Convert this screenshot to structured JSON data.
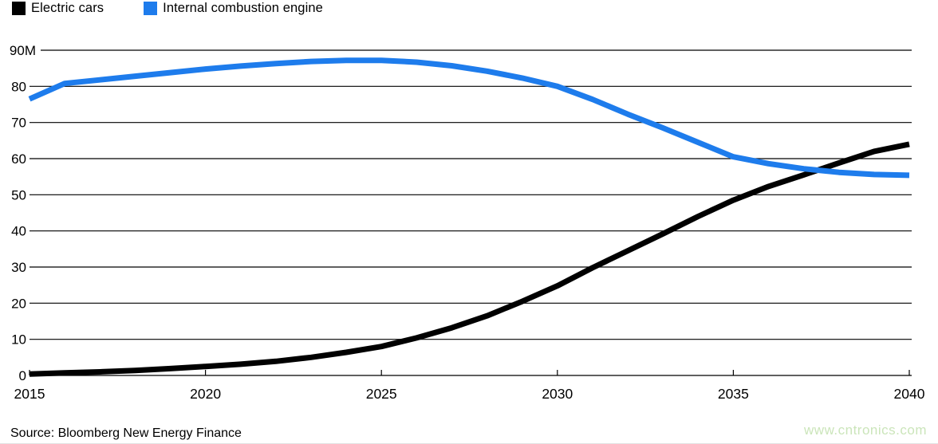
{
  "legend": {
    "items": [
      {
        "label": "Electric cars",
        "color": "#000000"
      },
      {
        "label": "Internal combustion engine",
        "color": "#1e7cec"
      }
    ]
  },
  "source_text": "Source: Bloomberg New Energy Finance",
  "watermark": {
    "text": "www.cntronics.com",
    "color": "#cbe5ba"
  },
  "colors": {
    "background": "#ffffff",
    "grid": "#000000",
    "axis": "#000000",
    "tick_text": "#000000",
    "electric_line": "#000000",
    "ice_line": "#1e7cec"
  },
  "chart_data": {
    "type": "line",
    "title": "",
    "xlabel": "",
    "ylabel": "",
    "unit": "M",
    "grid": "horizontal",
    "legend_position": "top-left",
    "xlim": [
      2015,
      2040
    ],
    "ylim": [
      0,
      90
    ],
    "xticks": [
      2015,
      2020,
      2025,
      2030,
      2035,
      2040
    ],
    "yticks": [
      0,
      10,
      20,
      30,
      40,
      50,
      60,
      70,
      80,
      90
    ],
    "ytick_labels": [
      "0",
      "10",
      "20",
      "30",
      "40",
      "50",
      "60",
      "70",
      "80",
      "90M"
    ],
    "x": [
      2015,
      2016,
      2017,
      2018,
      2019,
      2020,
      2021,
      2022,
      2023,
      2024,
      2025,
      2026,
      2027,
      2028,
      2029,
      2030,
      2031,
      2032,
      2033,
      2034,
      2035,
      2036,
      2037,
      2038,
      2039,
      2040
    ],
    "series": [
      {
        "name": "Electric cars",
        "color": "#000000",
        "values": [
          0.4,
          0.7,
          1.0,
          1.4,
          1.9,
          2.5,
          3.1,
          3.9,
          5.0,
          6.4,
          8.0,
          10.4,
          13.2,
          16.5,
          20.5,
          24.8,
          29.8,
          34.5,
          39.2,
          44.0,
          48.5,
          52.3,
          55.5,
          58.8,
          62.0,
          64.0
        ]
      },
      {
        "name": "Internal combustion engine",
        "color": "#1e7cec",
        "values": [
          76.5,
          80.8,
          81.8,
          82.8,
          83.8,
          84.8,
          85.6,
          86.3,
          86.9,
          87.2,
          87.2,
          86.7,
          85.7,
          84.2,
          82.3,
          80.0,
          76.4,
          72.3,
          68.5,
          64.5,
          60.5,
          58.6,
          57.2,
          56.2,
          55.6,
          55.4
        ]
      }
    ]
  }
}
